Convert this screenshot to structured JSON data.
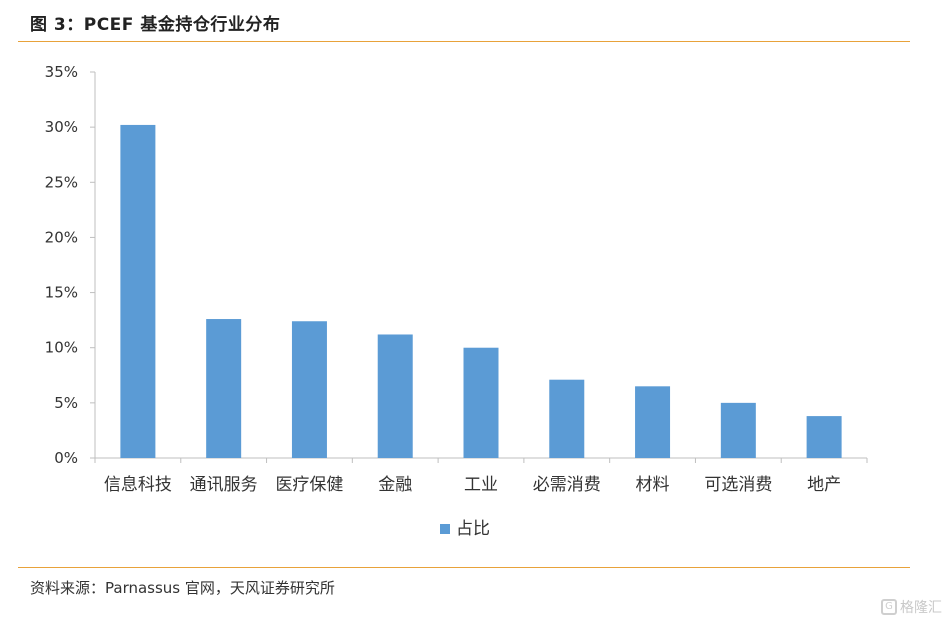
{
  "title": "图 3：PCEF 基金持仓行业分布",
  "source": "资料来源：Parnassus 官网，天风证券研究所",
  "watermark": "格隆汇",
  "colors": {
    "bar": "#5b9bd5",
    "rule": "#e8a23a",
    "axis": "#bfbfbf"
  },
  "chart_data": {
    "type": "bar",
    "categories": [
      "信息科技",
      "通讯服务",
      "医疗保健",
      "金融",
      "工业",
      "必需消费",
      "材料",
      "可选消费",
      "地产"
    ],
    "series": [
      {
        "name": "占比",
        "values": [
          30.2,
          12.6,
          12.4,
          11.2,
          10.0,
          7.1,
          6.5,
          5.0,
          3.8
        ]
      }
    ],
    "ylim": [
      0,
      35
    ],
    "yticks": [
      "0%",
      "5%",
      "10%",
      "15%",
      "20%",
      "25%",
      "30%",
      "35%"
    ],
    "ytick_values": [
      0,
      5,
      10,
      15,
      20,
      25,
      30,
      35
    ],
    "legend_position": "bottom",
    "grid": false
  }
}
